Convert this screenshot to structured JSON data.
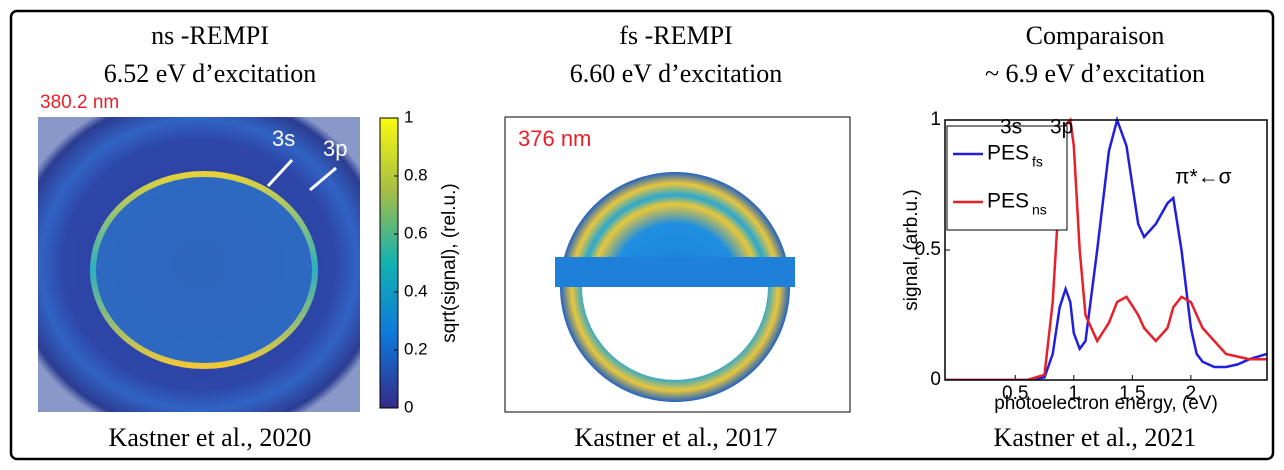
{
  "panels": [
    {
      "title": [
        "ns -REMPI",
        "6.52 eV d’excitation"
      ],
      "label": "380.2 nm",
      "annotations": [
        "3s",
        "3p"
      ],
      "colorbar": {
        "label": "sqrt(signal), (rel.u.)",
        "lim": [
          0,
          1
        ],
        "ticks": [
          0,
          0.2,
          0.4,
          0.6,
          0.8,
          1
        ]
      },
      "citation": "Kastner et al., 2020"
    },
    {
      "title": [
        "fs -REMPI",
        "6.60 eV d’excitation"
      ],
      "label": "376 nm",
      "citation": "Kastner et al., 2017"
    },
    {
      "title": [
        "Comparaison",
        "~ 6.9 eV d’excitation"
      ],
      "citation": "Kastner et al., 2021"
    }
  ],
  "chart_data": {
    "type": "line",
    "x_label": "photoelectron energy, (eV)",
    "y_label": "signal, (arb.u.)",
    "x": [
      -0.1,
      0.6,
      0.75,
      0.82,
      0.88,
      0.93,
      0.97,
      1.0,
      1.05,
      1.1,
      1.2,
      1.3,
      1.37,
      1.45,
      1.55,
      1.6,
      1.7,
      1.8,
      1.85,
      1.92,
      2.0,
      2.05,
      2.1,
      2.2,
      2.3,
      2.4,
      2.5,
      2.65
    ],
    "series": [
      {
        "name": "PES",
        "name_sub": "fs",
        "color": "#1f1fe0",
        "values": [
          0,
          0,
          0.01,
          0.1,
          0.28,
          0.35,
          0.3,
          0.18,
          0.12,
          0.15,
          0.5,
          0.88,
          1.0,
          0.9,
          0.6,
          0.55,
          0.6,
          0.68,
          0.7,
          0.5,
          0.2,
          0.1,
          0.07,
          0.05,
          0.05,
          0.06,
          0.08,
          0.1
        ]
      },
      {
        "name": "PES",
        "name_sub": "ns",
        "color": "#e8202a",
        "values": [
          0,
          0,
          0.02,
          0.3,
          0.75,
          0.98,
          1.0,
          0.9,
          0.5,
          0.25,
          0.15,
          0.22,
          0.3,
          0.32,
          0.25,
          0.2,
          0.15,
          0.2,
          0.28,
          0.32,
          0.3,
          0.25,
          0.2,
          0.15,
          0.1,
          0.09,
          0.08,
          0.08
        ]
      }
    ],
    "annotations": [
      "3s",
      "3p",
      "π*←σ"
    ],
    "xlim": [
      -0.1,
      2.65
    ],
    "ylim": [
      0,
      1
    ],
    "xticks": [
      0.5,
      1,
      1.5,
      2
    ],
    "yticks": [
      0,
      0.5,
      1
    ],
    "legend": "upper left"
  }
}
